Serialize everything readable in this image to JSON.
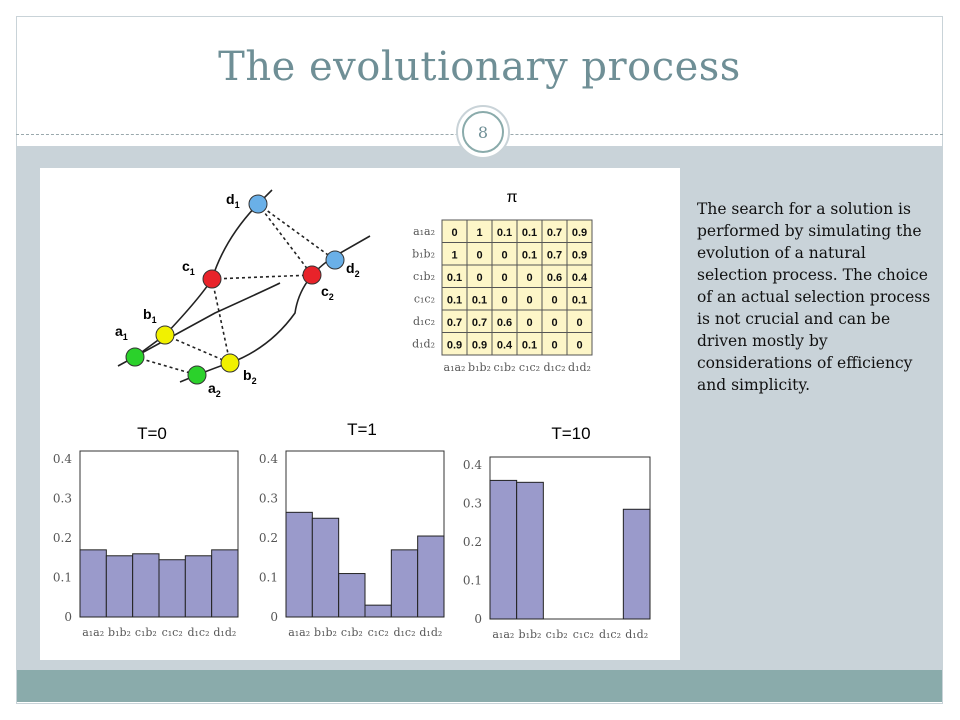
{
  "slide": {
    "title": "The evolutionary process",
    "page_number": "8",
    "body_text": "The search for a solution is performed by simulating the evolution of a natural selection process. The choice of an actual selection process is not crucial and can be driven mostly by considerations of efficiency and simplicity."
  },
  "graph": {
    "node_labels": [
      "d1",
      "c1",
      "b1",
      "a1",
      "a2",
      "b2",
      "c2",
      "d2"
    ]
  },
  "matrix": {
    "title": "π",
    "row_labels": [
      "a₁a₂",
      "b₁b₂",
      "c₁b₂",
      "c₁c₂",
      "d₁c₂",
      "d₁d₂"
    ],
    "col_labels": [
      "a₁a₂",
      "b₁b₂",
      "c₁b₂",
      "c₁c₂",
      "d₁c₂",
      "d₁d₂"
    ],
    "values": [
      [
        "0",
        "1",
        "0.1",
        "0.1",
        "0.7",
        "0.9"
      ],
      [
        "1",
        "0",
        "0",
        "0.1",
        "0.7",
        "0.9"
      ],
      [
        "0.1",
        "0",
        "0",
        "0",
        "0.6",
        "0.4"
      ],
      [
        "0.1",
        "0.1",
        "0",
        "0",
        "0",
        "0.1"
      ],
      [
        "0.7",
        "0.7",
        "0.6",
        "0",
        "0",
        "0"
      ],
      [
        "0.9",
        "0.9",
        "0.4",
        "0.1",
        "0",
        "0"
      ]
    ]
  },
  "chart_data": [
    {
      "type": "bar",
      "title": "T=0",
      "categories": [
        "a₁a₂",
        "b₁b₂",
        "c₁b₂",
        "c₁c₂",
        "d₁c₂",
        "d₁d₂"
      ],
      "values": [
        0.17,
        0.155,
        0.16,
        0.145,
        0.155,
        0.17
      ],
      "ylim": [
        0,
        0.4
      ],
      "yticks": [
        "0",
        "0.1",
        "0.2",
        "0.3",
        "0.4"
      ]
    },
    {
      "type": "bar",
      "title": "T=1",
      "categories": [
        "a₁a₂",
        "b₁b₂",
        "c₁b₂",
        "c₁c₂",
        "d₁c₂",
        "d₁d₂"
      ],
      "values": [
        0.265,
        0.25,
        0.11,
        0.03,
        0.17,
        0.205
      ],
      "ylim": [
        0,
        0.4
      ],
      "yticks": [
        "0",
        "0.1",
        "0.2",
        "0.3",
        "0.4"
      ]
    },
    {
      "type": "bar",
      "title": "T=10",
      "categories": [
        "a₁a₂",
        "b₁b₂",
        "c₁b₂",
        "c₁c₂",
        "d₁c₂",
        "d₁d₂"
      ],
      "values": [
        0.36,
        0.355,
        0,
        0,
        0,
        0.285
      ],
      "ylim": [
        0,
        0.4
      ],
      "yticks": [
        "0",
        "0.1",
        "0.2",
        "0.3",
        "0.4"
      ]
    }
  ],
  "colors": {
    "bar_fill": "#9a9acb",
    "node_blue": "#6ab0e8",
    "node_red": "#e8232a",
    "node_yellow": "#f1f100",
    "node_green": "#2bd12b",
    "matrix_fill": "#fdf6c8",
    "title_color": "#6f8f96"
  }
}
